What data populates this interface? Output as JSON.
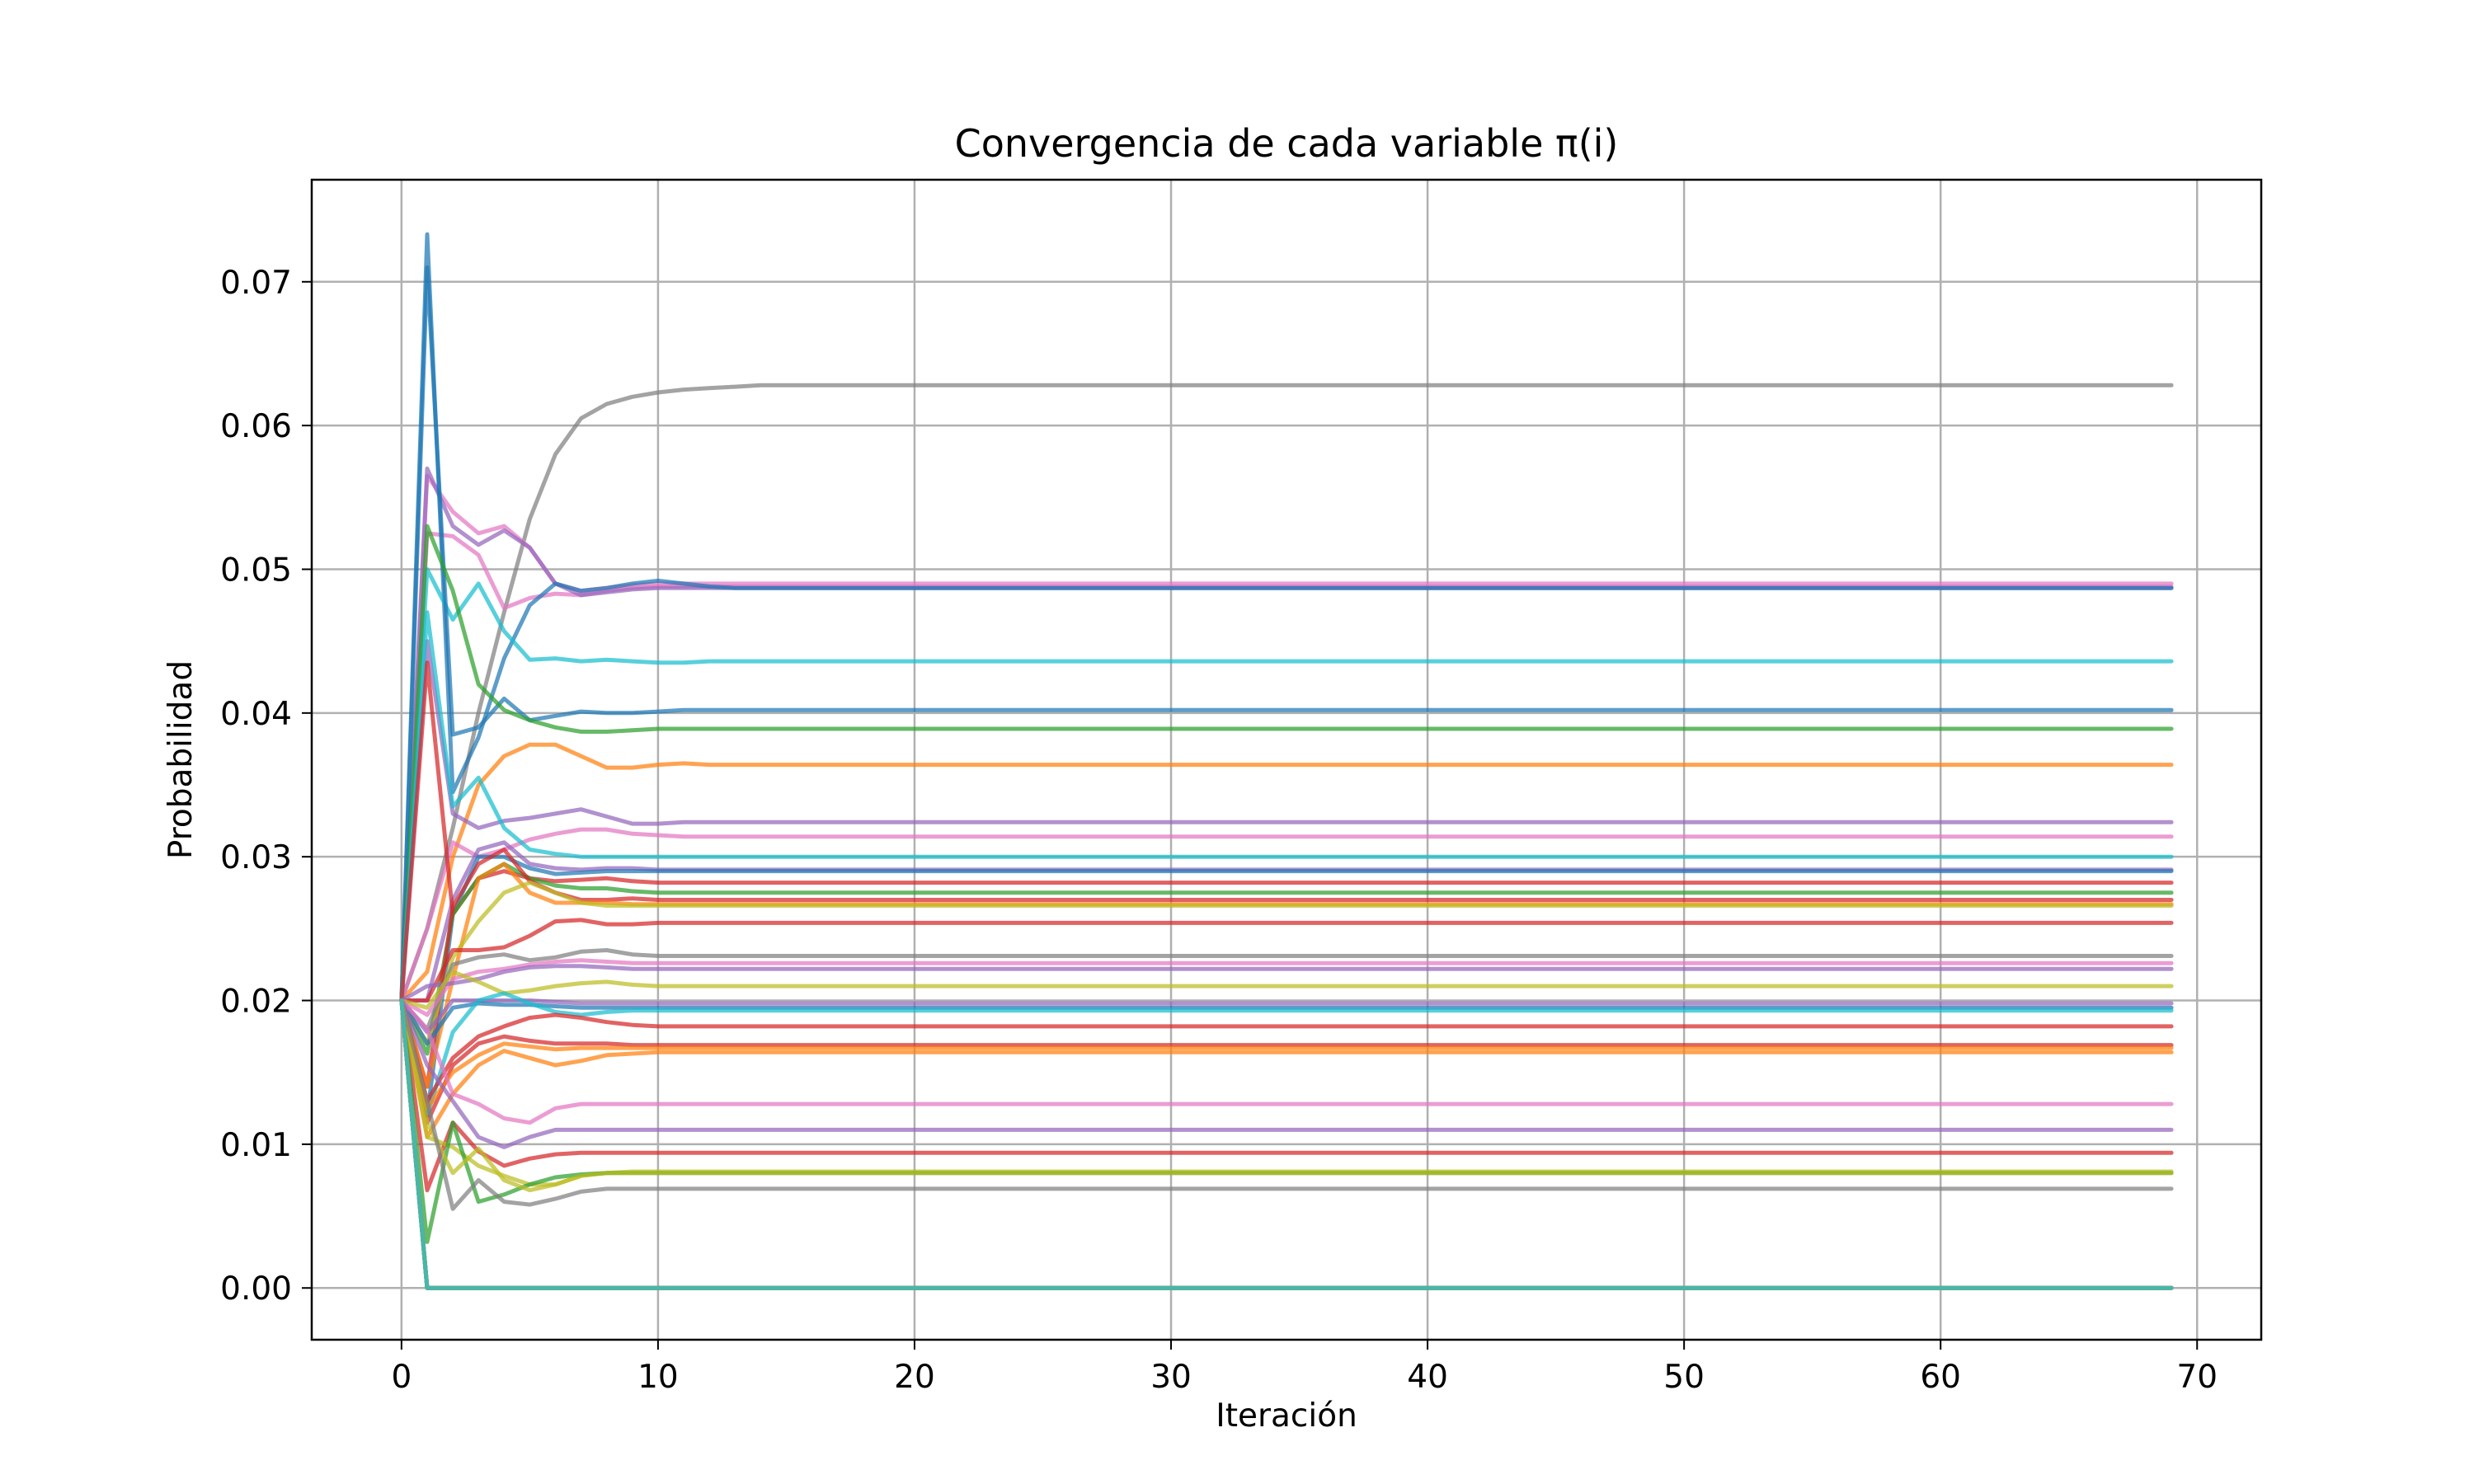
{
  "chart_data": {
    "type": "line",
    "title": "Convergencia de cada variable π(i)",
    "xlabel": "Iteración",
    "ylabel": "Probabilidad",
    "xlim": [
      -3.5,
      72.5
    ],
    "ylim": [
      -0.0036,
      0.0771
    ],
    "xticks": [
      "0",
      "10",
      "20",
      "30",
      "40",
      "50",
      "60",
      "70"
    ],
    "xtick_values": [
      0,
      10,
      20,
      30,
      40,
      50,
      60,
      70
    ],
    "yticks": [
      "0.00",
      "0.01",
      "0.02",
      "0.03",
      "0.04",
      "0.05",
      "0.06",
      "0.07"
    ],
    "ytick_values": [
      0,
      0.01,
      0.02,
      0.03,
      0.04,
      0.05,
      0.06,
      0.07
    ],
    "grid": true,
    "legend": "none",
    "x_start": 0,
    "x_end": 69,
    "start_value": 0.02,
    "series": [
      {
        "color": "#7f7f7f",
        "values": [
          0.02,
          0.025,
          0.032,
          0.04,
          0.047,
          0.0535,
          0.058,
          0.0605,
          0.0615,
          0.062,
          0.0623,
          0.0625,
          0.0626,
          0.0627,
          0.0628,
          0.0628
        ],
        "final": 0.0628
      },
      {
        "color": "#e377c2",
        "values": [
          0.02,
          0.0565,
          0.054,
          0.0525,
          0.053,
          0.0515,
          0.049,
          0.0485,
          0.0487,
          0.0489,
          0.049
        ],
        "final": 0.049
      },
      {
        "color": "#e377c2",
        "values": [
          0.02,
          0.0525,
          0.0523,
          0.051,
          0.0473,
          0.048,
          0.0483,
          0.0482,
          0.0485,
          0.0487,
          0.0488
        ],
        "final": 0.0488
      },
      {
        "color": "#9467bd",
        "values": [
          0.02,
          0.057,
          0.053,
          0.0517,
          0.0527,
          0.0515,
          0.049,
          0.0482,
          0.0484,
          0.0486,
          0.0487
        ],
        "final": 0.0487
      },
      {
        "color": "#1f77b4",
        "values": [
          0.02,
          0.0733,
          0.0345,
          0.0383,
          0.0438,
          0.0475,
          0.049,
          0.0485,
          0.0487,
          0.049,
          0.0492,
          0.049,
          0.0488,
          0.0487
        ],
        "final": 0.0487
      },
      {
        "color": "#17becf",
        "values": [
          0.02,
          0.05,
          0.0465,
          0.049,
          0.0457,
          0.0437,
          0.0438,
          0.0436,
          0.0437,
          0.0436,
          0.0435,
          0.0435,
          0.0436
        ],
        "final": 0.0436
      },
      {
        "color": "#1f77b4",
        "values": [
          0.02,
          0.071,
          0.0385,
          0.039,
          0.041,
          0.0395,
          0.0398,
          0.0401,
          0.04,
          0.04,
          0.0401,
          0.0402,
          0.0402
        ],
        "final": 0.0402
      },
      {
        "color": "#2ca02c",
        "values": [
          0.02,
          0.053,
          0.0485,
          0.042,
          0.0402,
          0.0395,
          0.039,
          0.0387,
          0.0387,
          0.0388,
          0.0389,
          0.0389
        ],
        "final": 0.0389
      },
      {
        "color": "#ff7f0e",
        "values": [
          0.02,
          0.022,
          0.03,
          0.035,
          0.037,
          0.0378,
          0.0378,
          0.037,
          0.0362,
          0.0362,
          0.0364,
          0.0365,
          0.0364
        ],
        "final": 0.0364
      },
      {
        "color": "#9467bd",
        "values": [
          0.02,
          0.045,
          0.033,
          0.032,
          0.0325,
          0.0327,
          0.033,
          0.0333,
          0.0328,
          0.0323,
          0.0323,
          0.0324
        ],
        "final": 0.0324
      },
      {
        "color": "#e377c2",
        "values": [
          0.02,
          0.025,
          0.031,
          0.03,
          0.0305,
          0.0312,
          0.0316,
          0.0319,
          0.0319,
          0.0316,
          0.0315,
          0.0314
        ],
        "final": 0.0314
      },
      {
        "color": "#17becf",
        "values": [
          0.02,
          0.047,
          0.0335,
          0.0355,
          0.032,
          0.0305,
          0.0302,
          0.03,
          0.03,
          0.03
        ],
        "final": 0.03
      },
      {
        "color": "#9467bd",
        "values": [
          0.02,
          0.02,
          0.027,
          0.0305,
          0.031,
          0.0295,
          0.0292,
          0.0291,
          0.0292,
          0.0292,
          0.0291
        ],
        "final": 0.0291
      },
      {
        "color": "#1f77b4",
        "values": [
          0.02,
          0.012,
          0.026,
          0.03,
          0.03,
          0.0292,
          0.0288,
          0.0289,
          0.029,
          0.029
        ],
        "final": 0.029
      },
      {
        "color": "#d62728",
        "values": [
          0.02,
          0.0435,
          0.026,
          0.0285,
          0.029,
          0.0285,
          0.0283,
          0.0284,
          0.0285,
          0.0283,
          0.0282
        ],
        "final": 0.0282
      },
      {
        "color": "#2ca02c",
        "values": [
          0.02,
          0.0163,
          0.026,
          0.0285,
          0.0295,
          0.0285,
          0.028,
          0.0278,
          0.0278,
          0.0276,
          0.0275
        ],
        "final": 0.0275
      },
      {
        "color": "#d62728",
        "values": [
          0.02,
          0.014,
          0.0265,
          0.0295,
          0.0305,
          0.0283,
          0.0275,
          0.027,
          0.027,
          0.0271,
          0.027
        ],
        "final": 0.027
      },
      {
        "color": "#ff7f0e",
        "values": [
          0.02,
          0.014,
          0.0215,
          0.0285,
          0.0295,
          0.0275,
          0.0268,
          0.0268,
          0.0268,
          0.0267
        ],
        "final": 0.0267
      },
      {
        "color": "#bcbd22",
        "values": [
          0.02,
          0.017,
          0.023,
          0.0255,
          0.0275,
          0.0282,
          0.0275,
          0.0268,
          0.0266,
          0.0266
        ],
        "final": 0.0266
      },
      {
        "color": "#d62728",
        "values": [
          0.02,
          0.02,
          0.0235,
          0.0235,
          0.0237,
          0.0245,
          0.0255,
          0.0256,
          0.0253,
          0.0253,
          0.0254
        ],
        "final": 0.0254
      },
      {
        "color": "#7f7f7f",
        "values": [
          0.02,
          0.018,
          0.0225,
          0.023,
          0.0232,
          0.0228,
          0.023,
          0.0234,
          0.0235,
          0.0232,
          0.0231
        ],
        "final": 0.0231
      },
      {
        "color": "#e377c2",
        "values": [
          0.02,
          0.019,
          0.0215,
          0.022,
          0.0222,
          0.0225,
          0.0227,
          0.0228,
          0.0227,
          0.0226
        ],
        "final": 0.0226
      },
      {
        "color": "#9467bd",
        "values": [
          0.02,
          0.021,
          0.0212,
          0.0215,
          0.022,
          0.0223,
          0.0224,
          0.0224,
          0.0223,
          0.0222
        ],
        "final": 0.0222
      },
      {
        "color": "#bcbd22",
        "values": [
          0.02,
          0.0195,
          0.022,
          0.0213,
          0.0205,
          0.0207,
          0.021,
          0.0212,
          0.0213,
          0.0211,
          0.021
        ],
        "final": 0.021
      },
      {
        "color": "#9467bd",
        "values": [
          0.02,
          0.0178,
          0.02,
          0.02,
          0.02,
          0.02,
          0.0199,
          0.0198
        ],
        "final": 0.0198
      },
      {
        "color": "#1f77b4",
        "values": [
          0.02,
          0.017,
          0.0195,
          0.0198,
          0.0197,
          0.0197,
          0.0196,
          0.0195
        ],
        "final": 0.0195
      },
      {
        "color": "#17becf",
        "values": [
          0.02,
          0.012,
          0.0178,
          0.02,
          0.0205,
          0.0198,
          0.0192,
          0.019,
          0.0192,
          0.0193
        ],
        "final": 0.0193
      },
      {
        "color": "#d62728",
        "values": [
          0.02,
          0.013,
          0.016,
          0.0175,
          0.0182,
          0.0188,
          0.019,
          0.0188,
          0.0185,
          0.0183,
          0.0182
        ],
        "final": 0.0182
      },
      {
        "color": "#d62728",
        "values": [
          0.02,
          0.0115,
          0.0155,
          0.017,
          0.0175,
          0.0172,
          0.017,
          0.017,
          0.017,
          0.0169
        ],
        "final": 0.0169
      },
      {
        "color": "#ff7f0e",
        "values": [
          0.02,
          0.0125,
          0.015,
          0.0162,
          0.017,
          0.0168,
          0.0166,
          0.0167,
          0.0167,
          0.0167
        ],
        "final": 0.0167
      },
      {
        "color": "#ff7f0e",
        "values": [
          0.02,
          0.0105,
          0.0135,
          0.0155,
          0.0165,
          0.016,
          0.0155,
          0.0158,
          0.0162,
          0.0163,
          0.0164
        ],
        "final": 0.0164
      },
      {
        "color": "#e377c2",
        "values": [
          0.02,
          0.018,
          0.0135,
          0.0128,
          0.0118,
          0.0115,
          0.0125,
          0.0128,
          0.0128,
          0.0128
        ],
        "final": 0.0128
      },
      {
        "color": "#9467bd",
        "values": [
          0.02,
          0.0155,
          0.013,
          0.0105,
          0.0098,
          0.0105,
          0.011,
          0.011,
          0.011,
          0.011
        ],
        "final": 0.011
      },
      {
        "color": "#d62728",
        "values": [
          0.02,
          0.0068,
          0.0115,
          0.0095,
          0.0085,
          0.009,
          0.0093,
          0.0094,
          0.0094,
          0.0094
        ],
        "final": 0.0094
      },
      {
        "color": "#bcbd22",
        "values": [
          0.02,
          0.0105,
          0.0098,
          0.0085,
          0.0078,
          0.0072,
          0.0072,
          0.0078,
          0.008,
          0.0081
        ],
        "final": 0.0081
      },
      {
        "color": "#2ca02c",
        "values": [
          0.02,
          0.0032,
          0.0115,
          0.006,
          0.0065,
          0.0072,
          0.0077,
          0.0079,
          0.008,
          0.008
        ],
        "final": 0.008
      },
      {
        "color": "#bcbd22",
        "values": [
          0.02,
          0.0115,
          0.008,
          0.0097,
          0.0075,
          0.0068,
          0.0072,
          0.0078,
          0.008,
          0.008
        ],
        "final": 0.008
      },
      {
        "color": "#7f7f7f",
        "values": [
          0.02,
          0.013,
          0.0055,
          0.0075,
          0.006,
          0.0058,
          0.0062,
          0.0067,
          0.0069,
          0.0069
        ],
        "final": 0.0069
      },
      {
        "color": "#1f77b4",
        "values": [
          0.02,
          0.0
        ],
        "final": 0.0
      },
      {
        "color": "#ff7f0e",
        "values": [
          0.02,
          0.0
        ],
        "final": 0.0
      },
      {
        "color": "#2ca02c",
        "values": [
          0.02,
          0.0
        ],
        "final": 0.0
      },
      {
        "color": "#d62728",
        "values": [
          0.02,
          0.0
        ],
        "final": 0.0
      },
      {
        "color": "#9467bd",
        "values": [
          0.02,
          0.0
        ],
        "final": 0.0
      },
      {
        "color": "#8c564b",
        "values": [
          0.02,
          0.0
        ],
        "final": 0.0
      },
      {
        "color": "#e377c2",
        "values": [
          0.02,
          0.0
        ],
        "final": 0.0
      },
      {
        "color": "#bcbd22",
        "values": [
          0.02,
          0.0
        ],
        "final": 0.0
      },
      {
        "color": "#17becf",
        "values": [
          0.02,
          0.0
        ],
        "final": 0.0
      }
    ]
  }
}
